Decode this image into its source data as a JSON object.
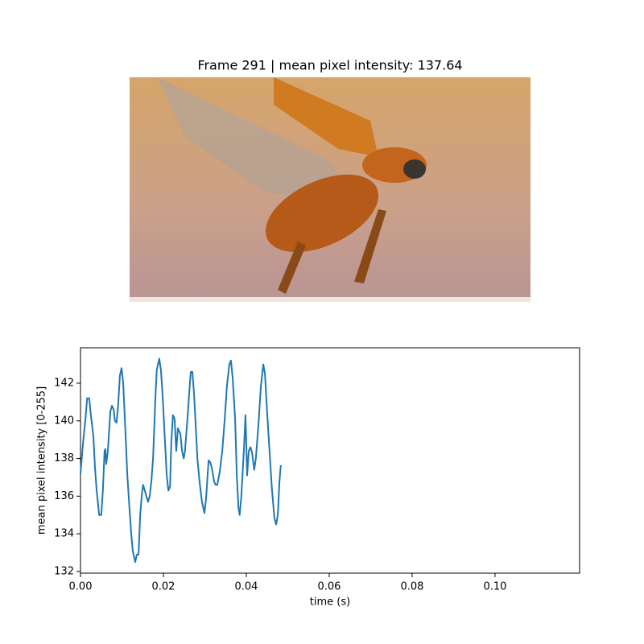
{
  "chart_data": {
    "type": "line",
    "title": "Frame 291 | mean pixel intensity: 137.64",
    "xlabel": "time (s)",
    "ylabel": "mean pixel intensity [0-255]",
    "color": "#1f77b4",
    "xlim": [
      0,
      0.1204
    ],
    "ylim": [
      131.91,
      143.88
    ],
    "xticks": [
      {
        "value": 0,
        "label": "0.00"
      },
      {
        "value": 0.02,
        "label": "0.02"
      },
      {
        "value": 0.04,
        "label": "0.04"
      },
      {
        "value": 0.06,
        "label": "0.06"
      },
      {
        "value": 0.08,
        "label": "0.08"
      },
      {
        "value": 0.1,
        "label": "0.10"
      }
    ],
    "yticks": [
      132,
      134,
      136,
      138,
      140,
      142
    ],
    "x": [
      0,
      0.0006,
      0.0012,
      0.0016,
      0.0021,
      0.0025,
      0.0031,
      0.0035,
      0.0039,
      0.0045,
      0.005,
      0.0054,
      0.0058,
      0.006,
      0.0062,
      0.0066,
      0.0072,
      0.0076,
      0.008,
      0.0083,
      0.0087,
      0.0091,
      0.0095,
      0.0099,
      0.0103,
      0.0107,
      0.0113,
      0.0118,
      0.0122,
      0.0126,
      0.0132,
      0.0136,
      0.014,
      0.0144,
      0.0148,
      0.0151,
      0.0155,
      0.0159,
      0.0163,
      0.0167,
      0.0171,
      0.0175,
      0.0181,
      0.0184,
      0.019,
      0.0194,
      0.0198,
      0.0204,
      0.0208,
      0.0212,
      0.0216,
      0.0219,
      0.0223,
      0.0227,
      0.0231,
      0.0235,
      0.0241,
      0.0245,
      0.0249,
      0.0252,
      0.0258,
      0.0262,
      0.0266,
      0.027,
      0.0274,
      0.0278,
      0.0282,
      0.0287,
      0.0293,
      0.0299,
      0.0303,
      0.0309,
      0.0313,
      0.0317,
      0.0322,
      0.0326,
      0.033,
      0.0336,
      0.0342,
      0.0348,
      0.0353,
      0.0359,
      0.0363,
      0.0367,
      0.0373,
      0.0377,
      0.0381,
      0.0384,
      0.0388,
      0.0394,
      0.0398,
      0.0402,
      0.0406,
      0.041,
      0.0414,
      0.0419,
      0.0423,
      0.0429,
      0.0435,
      0.0441,
      0.0445,
      0.045,
      0.0456,
      0.0462,
      0.0468,
      0.0472,
      0.0476,
      0.048,
      0.0483,
      0.0485
    ],
    "values": [
      137.2,
      138.8,
      140.1,
      141.2,
      141.2,
      140.3,
      139.2,
      137.5,
      136.3,
      135.0,
      135.0,
      136.3,
      138.4,
      138.5,
      137.7,
      138.4,
      140.5,
      140.8,
      140.6,
      140.0,
      139.9,
      140.9,
      142.4,
      142.8,
      142.0,
      140.1,
      137.1,
      135.4,
      134.1,
      133.1,
      132.5,
      132.9,
      132.9,
      135.0,
      136.1,
      136.6,
      136.3,
      136.0,
      135.7,
      136.0,
      136.8,
      138.0,
      141.4,
      142.7,
      143.3,
      142.7,
      141.4,
      138.8,
      137.1,
      136.3,
      136.5,
      138.8,
      140.3,
      140.1,
      138.4,
      139.6,
      139.3,
      138.4,
      138.0,
      138.4,
      140.1,
      141.4,
      142.6,
      142.6,
      141.4,
      139.7,
      138.0,
      136.8,
      135.7,
      135.1,
      135.9,
      137.9,
      137.8,
      137.5,
      136.8,
      136.6,
      136.6,
      137.3,
      138.4,
      140.1,
      141.8,
      143.0,
      143.2,
      142.3,
      140.1,
      137.1,
      135.4,
      135.0,
      136.0,
      138.4,
      140.3,
      137.1,
      138.4,
      138.6,
      138.3,
      137.4,
      138.0,
      139.7,
      141.8,
      143.0,
      142.5,
      140.5,
      138.4,
      136.3,
      134.8,
      134.5,
      135.0,
      136.8,
      137.6,
      137.6
    ]
  }
}
